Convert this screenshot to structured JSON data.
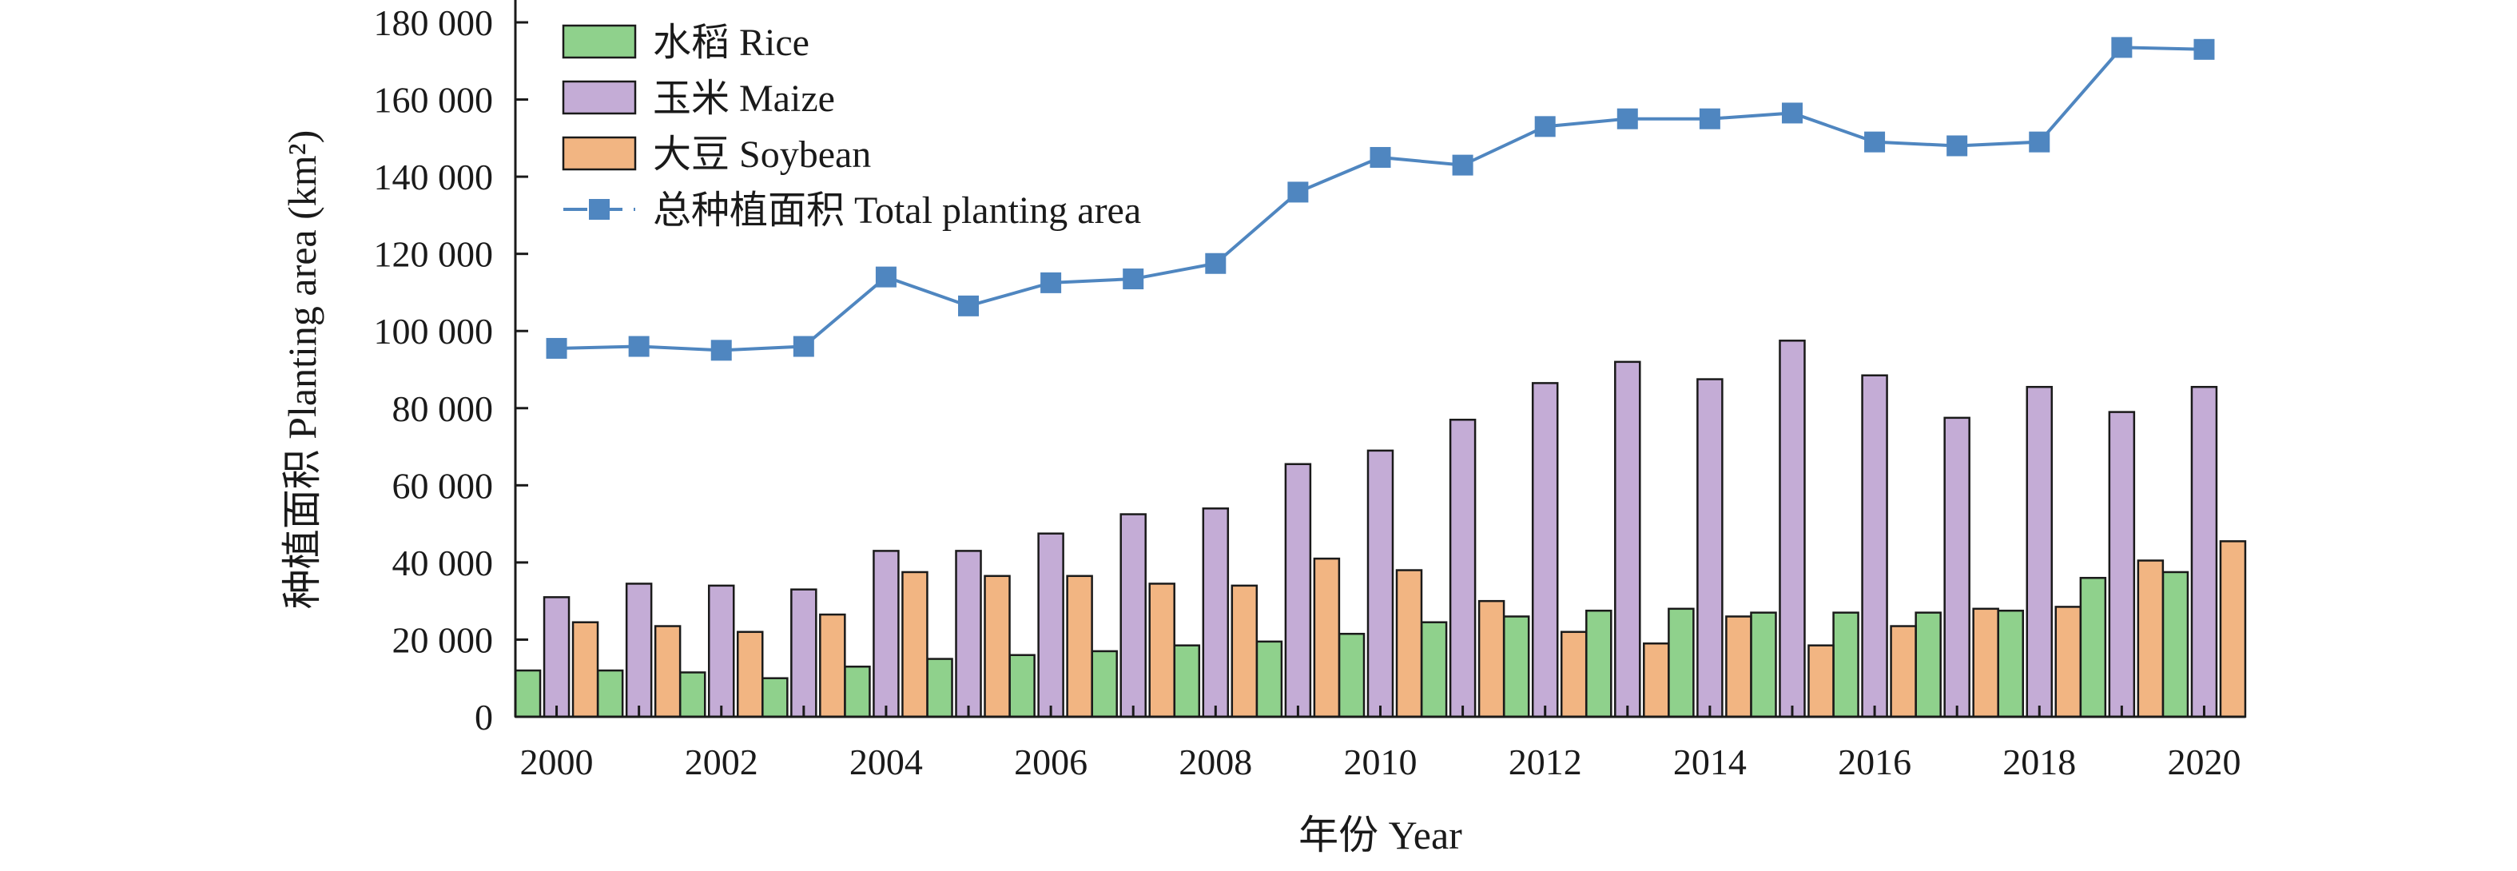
{
  "chart_data": {
    "type": "bar",
    "ylabel": "种植面积 Planting area (km²)",
    "xlabel": "年份 Year",
    "ylim": [
      0,
      180000
    ],
    "y_ticks": [
      0,
      20000,
      40000,
      60000,
      80000,
      100000,
      120000,
      140000,
      160000,
      180000
    ],
    "y_tick_labels": [
      "0",
      "20 000",
      "40 000",
      "60 000",
      "80 000",
      "100 000",
      "120 000",
      "140 000",
      "160 000",
      "180 000"
    ],
    "x": [
      2000,
      2001,
      2002,
      2003,
      2004,
      2005,
      2006,
      2007,
      2008,
      2009,
      2010,
      2011,
      2012,
      2013,
      2014,
      2015,
      2016,
      2017,
      2018,
      2019,
      2020
    ],
    "x_tick_labels": [
      "2000",
      "2002",
      "2004",
      "2006",
      "2008",
      "2010",
      "2012",
      "2014",
      "2016",
      "2018",
      "2020"
    ],
    "legend_position": "top-left",
    "grid": false,
    "series": [
      {
        "name": "水稻 Rice",
        "kind": "bar",
        "color": "#8fd18c",
        "values": [
          12000,
          12000,
          11500,
          10000,
          13000,
          15000,
          16000,
          17000,
          18500,
          19500,
          21500,
          24500,
          26000,
          27500,
          28000,
          27000,
          27000,
          27000,
          27500,
          36000,
          37500
        ]
      },
      {
        "name": "玉米 Maize",
        "kind": "bar",
        "color": "#c4acd6",
        "values": [
          31000,
          34500,
          34000,
          33000,
          43000,
          43000,
          47500,
          52500,
          54000,
          65500,
          69000,
          77000,
          86500,
          92000,
          87500,
          97500,
          88500,
          77500,
          85500,
          79000,
          85500
        ]
      },
      {
        "name": "大豆 Soybean",
        "kind": "bar",
        "color": "#f2b582",
        "values": [
          24500,
          23500,
          22000,
          26500,
          37500,
          36500,
          36500,
          34500,
          34000,
          41000,
          38000,
          30000,
          22000,
          19000,
          26000,
          18500,
          23500,
          28000,
          28500,
          40500,
          45500
        ]
      },
      {
        "name": "总种植面积 Total planting area",
        "kind": "line",
        "color": "#4f86c0",
        "values": [
          95500,
          96000,
          95000,
          96000,
          114000,
          106500,
          112500,
          113500,
          117500,
          136000,
          145000,
          143000,
          153000,
          155000,
          155000,
          156500,
          149000,
          148000,
          149000,
          173500,
          173000
        ]
      }
    ]
  }
}
